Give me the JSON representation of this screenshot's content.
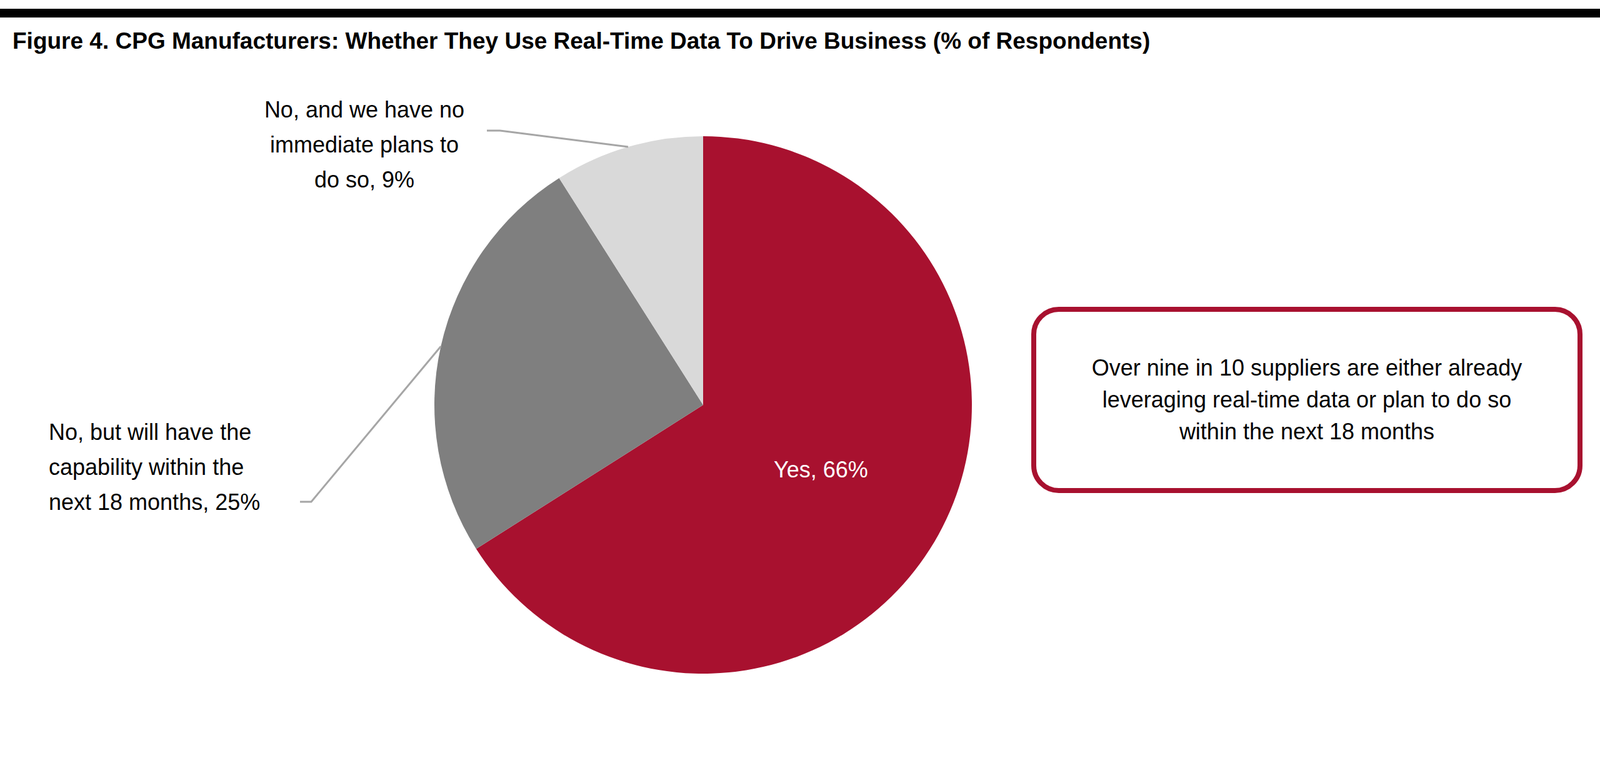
{
  "chart_data": {
    "type": "pie",
    "title": "Figure 4. CPG Manufacturers: Whether They Use Real-Time Data To Drive Business (% of Respondents)",
    "categories": [
      "Yes",
      "No, but will have the capability within the next 18 months",
      "No, and we have no immediate plans to do so"
    ],
    "values": [
      66,
      25,
      9
    ],
    "value_labels": [
      "66%",
      "25%",
      "9%"
    ],
    "colors": [
      "#a8112f",
      "#7f7f7f",
      "#d9d9d9"
    ],
    "data_labels": true,
    "annotations": [
      "Over nine in 10 suppliers are either already leveraging real-time data or plan to do so within the next 18 months"
    ]
  }
}
